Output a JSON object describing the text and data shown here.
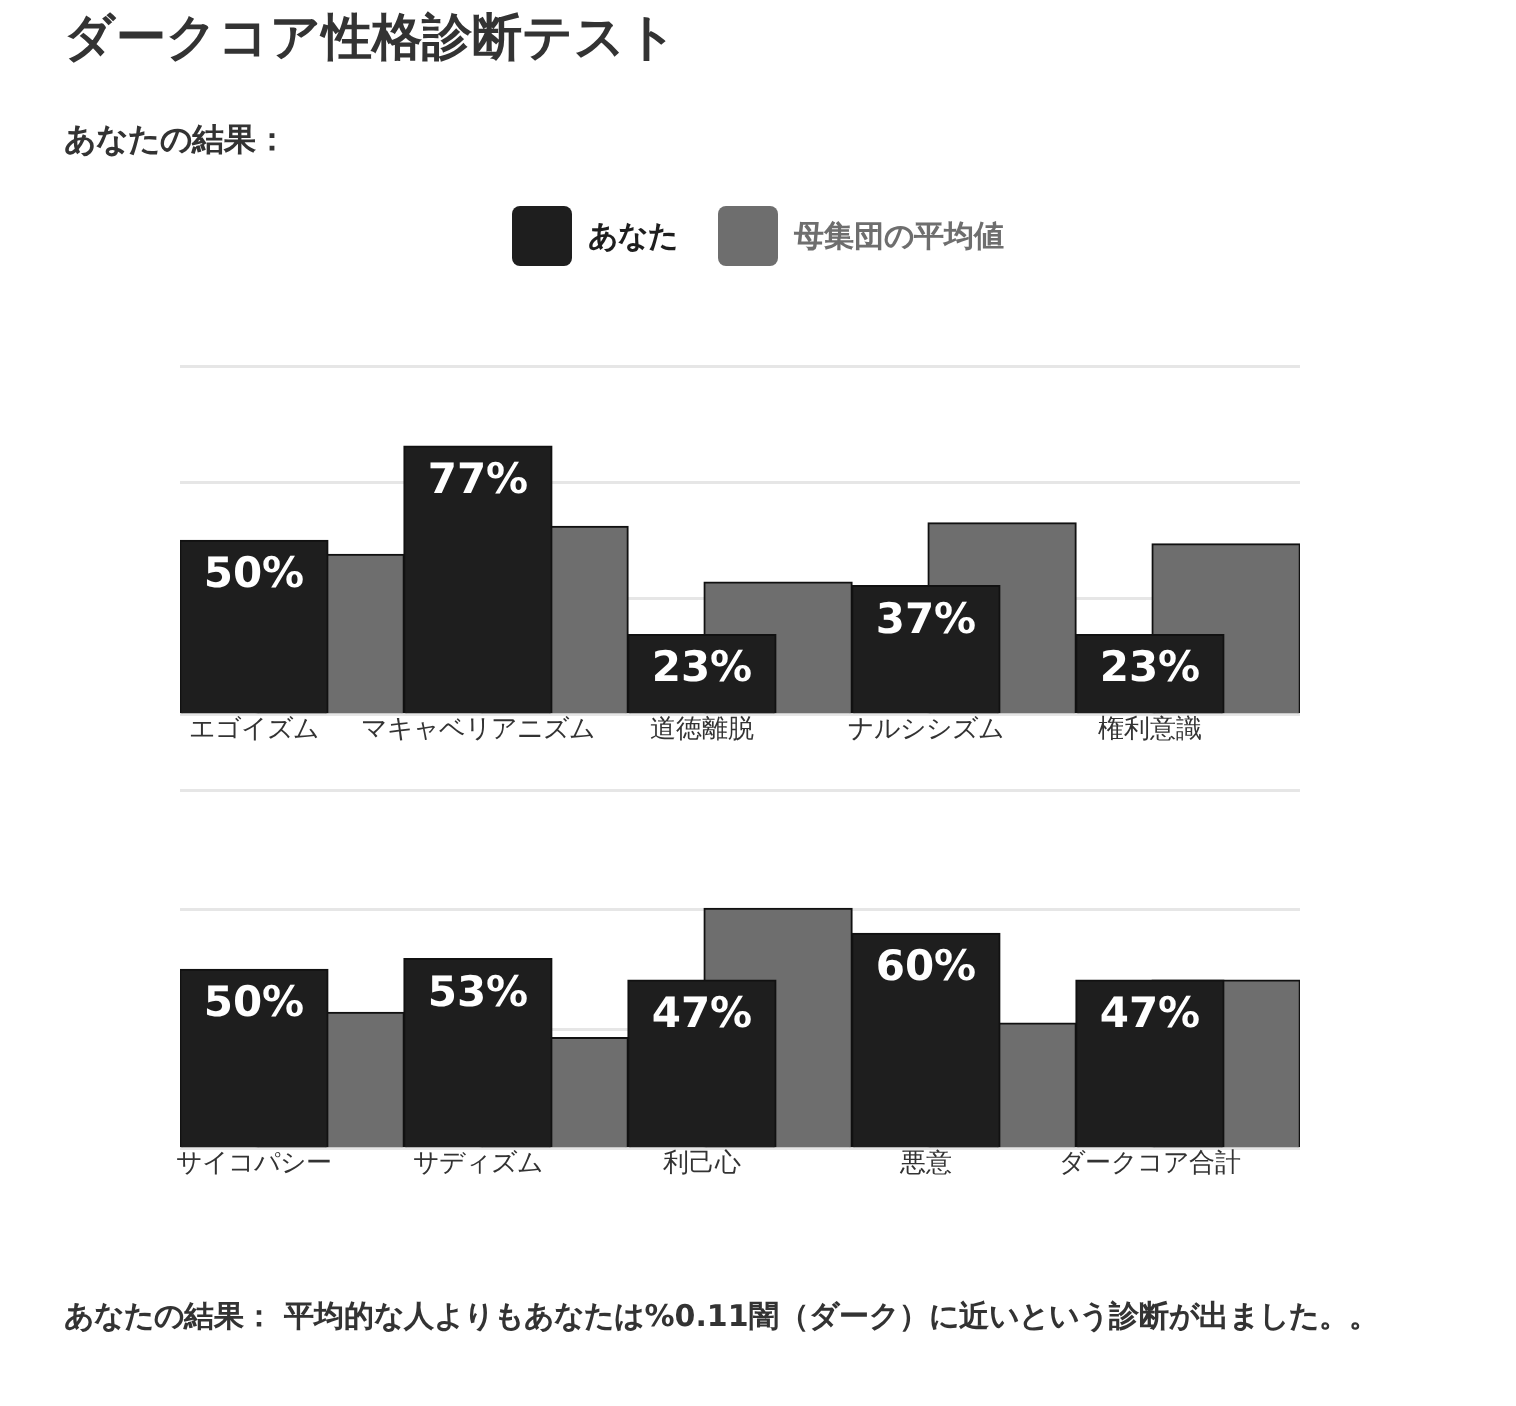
{
  "chart_data": [
    {
      "type": "bar",
      "title": "ダークコア性格診断テスト",
      "subtitle": "あなたの結果：",
      "categories": [
        "エゴイズム",
        "マキャベリアニズム",
        "道徳離脱",
        "ナルシシズム",
        "権利意識"
      ],
      "series": [
        {
          "name": "あなた",
          "color": "#1e1e1e",
          "values": [
            50,
            77,
            23,
            37,
            23
          ],
          "value_labels": [
            "50%",
            "77%",
            "23%",
            "37%",
            "23%"
          ]
        },
        {
          "name": "母集団の平均値",
          "color": "#6e6e6e",
          "values": [
            46,
            54,
            38,
            55,
            49
          ]
        }
      ],
      "ylim": [
        0,
        100
      ],
      "yticks": [
        {
          "value": 0,
          "label": null
        },
        {
          "value": 33.3,
          "label": null
        },
        {
          "value": 66.7,
          "label": null
        },
        {
          "value": 100,
          "label": null
        }
      ],
      "tick_labels": "x",
      "grid": "y",
      "legend": "top"
    },
    {
      "type": "bar",
      "categories": [
        "サイコパシー",
        "サディズム",
        "利己心",
        "悪意",
        "ダークコア合計"
      ],
      "series": [
        {
          "color": "#1e1e1e",
          "values": [
            50,
            53,
            47,
            60,
            47
          ],
          "value_labels": [
            "50%",
            "53%",
            "47%",
            "60%",
            "47%"
          ]
        },
        {
          "color": "#6e6e6e",
          "values": [
            38,
            31,
            67,
            35,
            47
          ]
        }
      ],
      "ylim": [
        0,
        100
      ],
      "yticks": [
        {
          "value": 0,
          "label": null
        },
        {
          "value": 33.3,
          "label": null
        },
        {
          "value": 66.7,
          "label": null
        },
        {
          "value": 100,
          "label": null
        }
      ],
      "tick_labels": "x",
      "grid": "y",
      "legend": false,
      "annotations": [
        "あなたの結果： 平均的な人よりもあなたは%0.11闇（ダーク）に近いという診断が出ました。。"
      ]
    }
  ]
}
